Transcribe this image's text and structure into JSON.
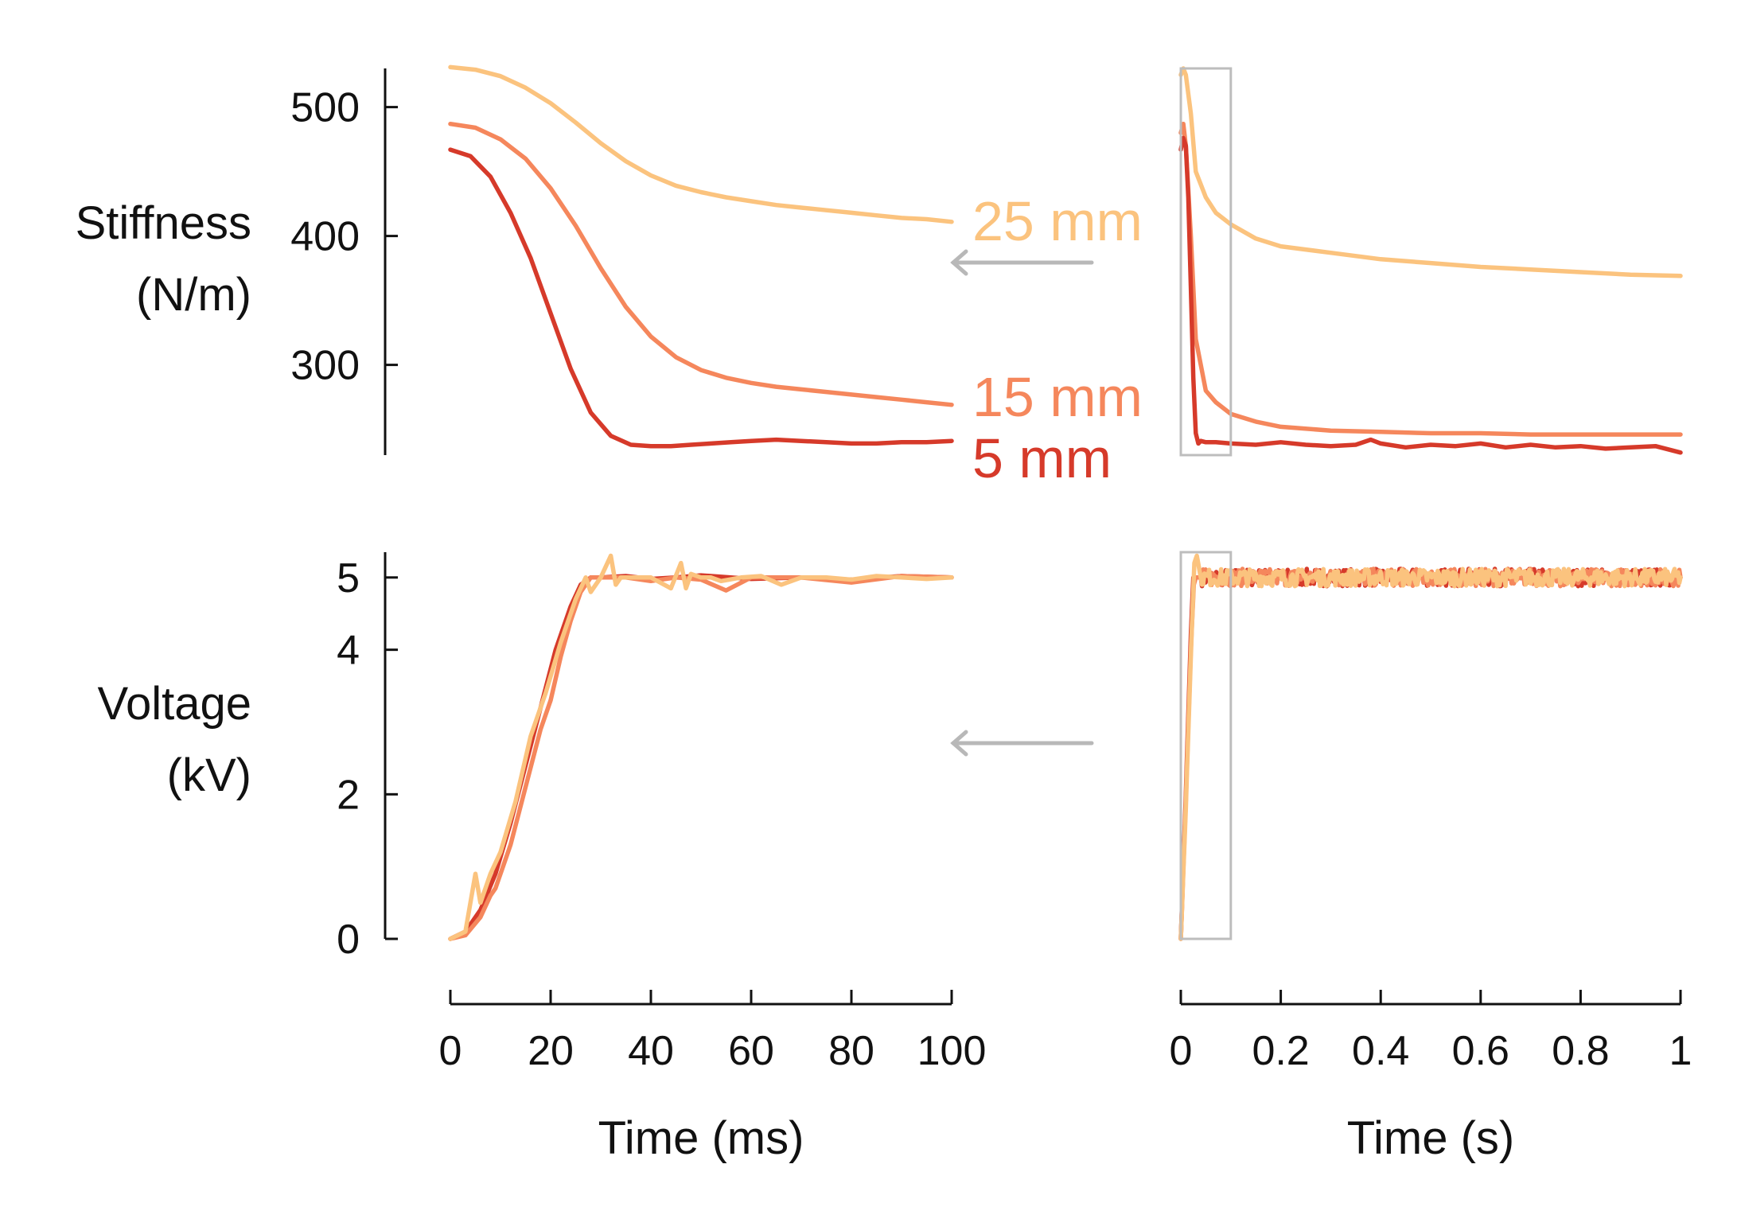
{
  "colors": {
    "s5": "#d63a2a",
    "s15": "#f5875c",
    "s25": "#fbc37e",
    "axis": "#111111",
    "arrow": "#b8b8b8",
    "zoom_box": "#bdbdbd"
  },
  "chart_data": [
    {
      "id": "stiffness-ms",
      "type": "line",
      "ylabel_lines": [
        "Stiffness",
        "(N/m)"
      ],
      "xlim": [
        0,
        100
      ],
      "ylim": [
        230,
        530
      ],
      "yticks": [
        300,
        400,
        500
      ],
      "yticklabels": [
        "300",
        "400",
        "500"
      ],
      "series": [
        {
          "name": "25 mm",
          "label": "25 mm",
          "color": "#fbc37e",
          "x": [
            0,
            5,
            10,
            15,
            20,
            25,
            30,
            35,
            40,
            45,
            50,
            55,
            60,
            65,
            70,
            75,
            80,
            85,
            90,
            95,
            100
          ],
          "y": [
            531,
            529,
            524,
            515,
            503,
            488,
            472,
            458,
            447,
            439,
            434,
            430,
            427,
            424,
            422,
            420,
            418,
            416,
            414,
            413,
            411
          ]
        },
        {
          "name": "15 mm",
          "label": "15 mm",
          "color": "#f5875c",
          "x": [
            0,
            5,
            10,
            15,
            20,
            25,
            30,
            35,
            40,
            45,
            50,
            55,
            60,
            65,
            70,
            75,
            80,
            85,
            90,
            95,
            100
          ],
          "y": [
            487,
            484,
            475,
            460,
            437,
            408,
            375,
            345,
            322,
            306,
            296,
            290,
            286,
            283,
            281,
            279,
            277,
            275,
            273,
            271,
            269
          ]
        },
        {
          "name": "5 mm",
          "label": "5 mm",
          "color": "#d63a2a",
          "x": [
            0,
            4,
            8,
            12,
            16,
            20,
            24,
            28,
            32,
            36,
            40,
            44,
            48,
            52,
            56,
            60,
            65,
            70,
            75,
            80,
            85,
            90,
            95,
            100
          ],
          "y": [
            467,
            462,
            446,
            418,
            383,
            340,
            297,
            263,
            245,
            238,
            237,
            237,
            238,
            239,
            240,
            241,
            242,
            241,
            240,
            239,
            239,
            240,
            240,
            241
          ]
        }
      ]
    },
    {
      "id": "stiffness-s",
      "type": "line",
      "xlim": [
        0,
        1
      ],
      "ylim": [
        230,
        530
      ],
      "series": [
        {
          "name": "25 mm",
          "color": "#fbc37e",
          "x": [
            0,
            0.005,
            0.01,
            0.02,
            0.03,
            0.05,
            0.07,
            0.1,
            0.15,
            0.2,
            0.3,
            0.4,
            0.5,
            0.6,
            0.7,
            0.8,
            0.9,
            1.0
          ],
          "y": [
            525,
            530,
            525,
            495,
            450,
            430,
            418,
            409,
            398,
            392,
            387,
            382,
            379,
            376,
            374,
            372,
            370,
            369
          ]
        },
        {
          "name": "15 mm",
          "color": "#f5875c",
          "x": [
            0,
            0.005,
            0.01,
            0.02,
            0.03,
            0.05,
            0.07,
            0.1,
            0.15,
            0.2,
            0.3,
            0.4,
            0.5,
            0.6,
            0.7,
            0.8,
            0.9,
            1.0
          ],
          "y": [
            480,
            487,
            470,
            400,
            320,
            280,
            271,
            262,
            256,
            252,
            249,
            248,
            247,
            247,
            246,
            246,
            246,
            246
          ]
        },
        {
          "name": "5 mm",
          "color": "#d63a2a",
          "x": [
            0,
            0.005,
            0.01,
            0.015,
            0.02,
            0.025,
            0.03,
            0.035,
            0.04,
            0.05,
            0.07,
            0.1,
            0.15,
            0.2,
            0.25,
            0.3,
            0.35,
            0.38,
            0.4,
            0.45,
            0.5,
            0.55,
            0.6,
            0.65,
            0.7,
            0.75,
            0.8,
            0.85,
            0.9,
            0.95,
            1.0
          ],
          "y": [
            467,
            476,
            470,
            430,
            360,
            290,
            247,
            239,
            241,
            240,
            240,
            239,
            238,
            240,
            238,
            237,
            238,
            242,
            239,
            236,
            238,
            237,
            239,
            236,
            238,
            236,
            237,
            235,
            236,
            237,
            232
          ]
        }
      ]
    },
    {
      "id": "voltage-ms",
      "type": "line",
      "ylabel_lines": [
        "Voltage",
        "(kV)"
      ],
      "xlabel": "Time (ms)",
      "xlim": [
        0,
        100
      ],
      "ylim": [
        0,
        5.35
      ],
      "yticks": [
        0,
        2,
        4,
        5
      ],
      "yticklabels": [
        "0",
        "2",
        "4",
        "5"
      ],
      "xticks": [
        0,
        20,
        40,
        60,
        80,
        100
      ],
      "xticklabels": [
        "0",
        "20",
        "40",
        "60",
        "80",
        "100"
      ],
      "series": [
        {
          "name": "5 mm",
          "color": "#d63a2a",
          "x": [
            0,
            3,
            6,
            9,
            12,
            15,
            18,
            21,
            24,
            26,
            28,
            30,
            35,
            40,
            45,
            50,
            60,
            70,
            80,
            90,
            100
          ],
          "y": [
            0,
            0.1,
            0.4,
            0.9,
            1.6,
            2.4,
            3.2,
            4.0,
            4.6,
            4.9,
            5.0,
            5.0,
            5.02,
            4.98,
            5.0,
            5.03,
            4.98,
            5.0,
            4.97,
            5.02,
            5.0
          ]
        },
        {
          "name": "15 mm",
          "color": "#f5875c",
          "x": [
            0,
            3,
            6,
            8,
            9,
            12,
            15,
            18,
            20,
            22,
            24,
            26,
            28,
            30,
            35,
            40,
            45,
            50,
            55,
            60,
            70,
            80,
            90,
            100
          ],
          "y": [
            0,
            0.05,
            0.3,
            0.6,
            0.7,
            1.3,
            2.1,
            2.9,
            3.3,
            3.9,
            4.4,
            4.8,
            5.0,
            5.0,
            5.0,
            4.95,
            5.0,
            4.97,
            4.82,
            5.0,
            5.0,
            4.93,
            5.02,
            5.0
          ]
        },
        {
          "name": "25 mm",
          "color": "#fbc37e",
          "x": [
            0,
            3,
            5,
            6,
            8,
            10,
            13,
            16,
            19,
            22,
            25,
            27,
            28,
            30,
            32,
            33,
            34,
            36,
            40,
            44,
            46,
            47,
            48,
            50,
            52,
            54,
            58,
            62,
            66,
            70,
            75,
            80,
            85,
            90,
            95,
            100
          ],
          "y": [
            0,
            0.1,
            0.9,
            0.5,
            0.9,
            1.2,
            1.9,
            2.8,
            3.4,
            4.1,
            4.7,
            5.0,
            4.8,
            5.0,
            5.3,
            4.9,
            5.0,
            5.0,
            5.0,
            4.85,
            5.2,
            4.85,
            5.05,
            5.0,
            5.0,
            4.95,
            5.0,
            5.02,
            4.9,
            5.0,
            5.0,
            4.97,
            5.02,
            5.0,
            4.98,
            5.0
          ]
        }
      ]
    },
    {
      "id": "voltage-s",
      "type": "line",
      "xlabel": "Time (s)",
      "xlim": [
        0,
        1
      ],
      "ylim": [
        0,
        5.35
      ],
      "xticks": [
        0,
        0.2,
        0.4,
        0.6,
        0.8,
        1
      ],
      "xticklabels": [
        "0",
        "0.2",
        "0.4",
        "0.6",
        "0.8",
        "1"
      ],
      "noise_amplitude_kV": 0.12,
      "series": [
        {
          "name": "5 mm",
          "color": "#d63a2a",
          "x": [
            0,
            0.01,
            0.02,
            0.025,
            0.03,
            0.04,
            1.0
          ],
          "y": [
            0,
            2.0,
            4.2,
            5.0,
            5.0,
            5.0,
            5.0
          ]
        },
        {
          "name": "15 mm",
          "color": "#f5875c",
          "x": [
            0,
            0.01,
            0.02,
            0.026,
            0.03,
            0.04,
            1.0
          ],
          "y": [
            0,
            1.9,
            4.0,
            4.9,
            5.0,
            5.0,
            5.0
          ]
        },
        {
          "name": "25 mm",
          "color": "#fbc37e",
          "x": [
            0,
            0.01,
            0.02,
            0.027,
            0.032,
            0.04,
            1.0
          ],
          "y": [
            0,
            1.8,
            3.9,
            5.2,
            5.3,
            5.0,
            5.0
          ]
        }
      ]
    }
  ],
  "zoom": {
    "x_range_s": [
      0,
      0.1
    ]
  }
}
